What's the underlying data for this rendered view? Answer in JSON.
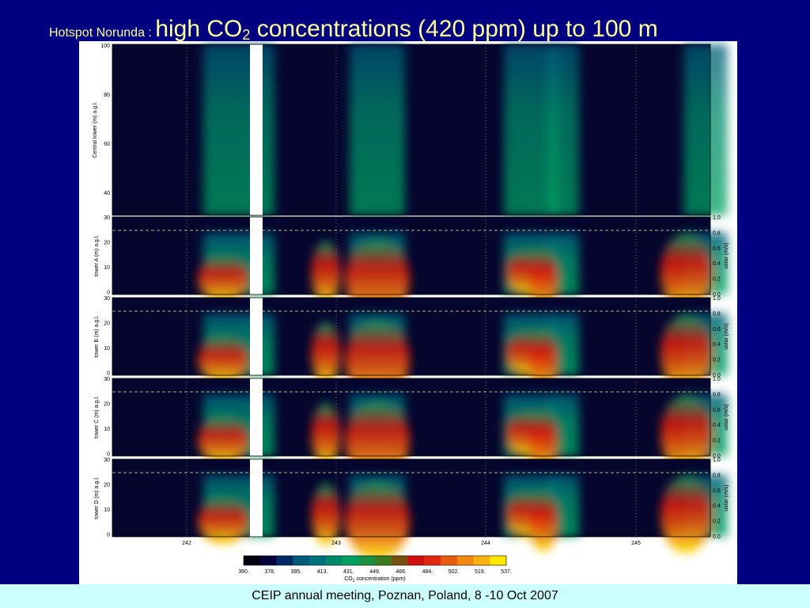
{
  "title": {
    "prefix": "Hotspot Norunda :",
    "main": "high CO",
    "sub": "2",
    "rest": " concentrations (420 ppm) up to 100 m"
  },
  "figure": {
    "top_panel": {
      "ylabel": "Central tower (m) a.g.l.",
      "yticks": [
        "100",
        "80",
        "60",
        "40"
      ]
    },
    "tower_panels": [
      {
        "ylabel": "tower A (m) a.g.l.",
        "yticks": [
          "30",
          "20",
          "10",
          "0"
        ],
        "y2label": "ustar (m/s)",
        "y2ticks": [
          "1.0",
          "0.8",
          "0.6",
          "0.4",
          "0.2",
          "0.0"
        ]
      },
      {
        "ylabel": "tower B (m) a.g.l.",
        "yticks": [
          "30",
          "20",
          "10",
          "0"
        ],
        "y2label": "ustar (m/s)",
        "y2ticks": [
          "1.0",
          "0.8",
          "0.6",
          "0.4",
          "0.2",
          "0.0"
        ]
      },
      {
        "ylabel": "tower C (m) a.g.l.",
        "yticks": [
          "30",
          "20",
          "10",
          "0"
        ],
        "y2label": "ustar (m/s)",
        "y2ticks": [
          "1.0",
          "0.8",
          "0.6",
          "0.4",
          "0.2",
          "0.0"
        ]
      },
      {
        "ylabel": "tower D (m) a.g.l.",
        "yticks": [
          "30",
          "20",
          "10",
          "0"
        ],
        "y2label": "ustar (m/s)",
        "y2ticks": [
          "1.0",
          "0.8",
          "0.6",
          "0.4",
          "0.2",
          "0.0"
        ]
      }
    ],
    "xticks": [
      "242",
      "243",
      "244",
      "245"
    ],
    "colorbar": {
      "labels": [
        "360.",
        "378.",
        "395.",
        "413.",
        "431.",
        "449.",
        "466.",
        "484.",
        "502.",
        "519.",
        "537."
      ],
      "colors": [
        "#000010",
        "#00003a",
        "#002a66",
        "#005a7a",
        "#00707a",
        "#008a6a",
        "#00a060",
        "#1a9040",
        "#3a7a20",
        "#7a5010",
        "#d01010",
        "#e02a10",
        "#e85a10",
        "#f08a10",
        "#f8b010",
        "#ffe800"
      ],
      "label_prefix": "CO",
      "label_sub": "2",
      "label_rest": " concentration (ppm)"
    }
  },
  "footer": "CEIP annual meeting, Poznan, Poland, 8 -10 Oct 2007"
}
